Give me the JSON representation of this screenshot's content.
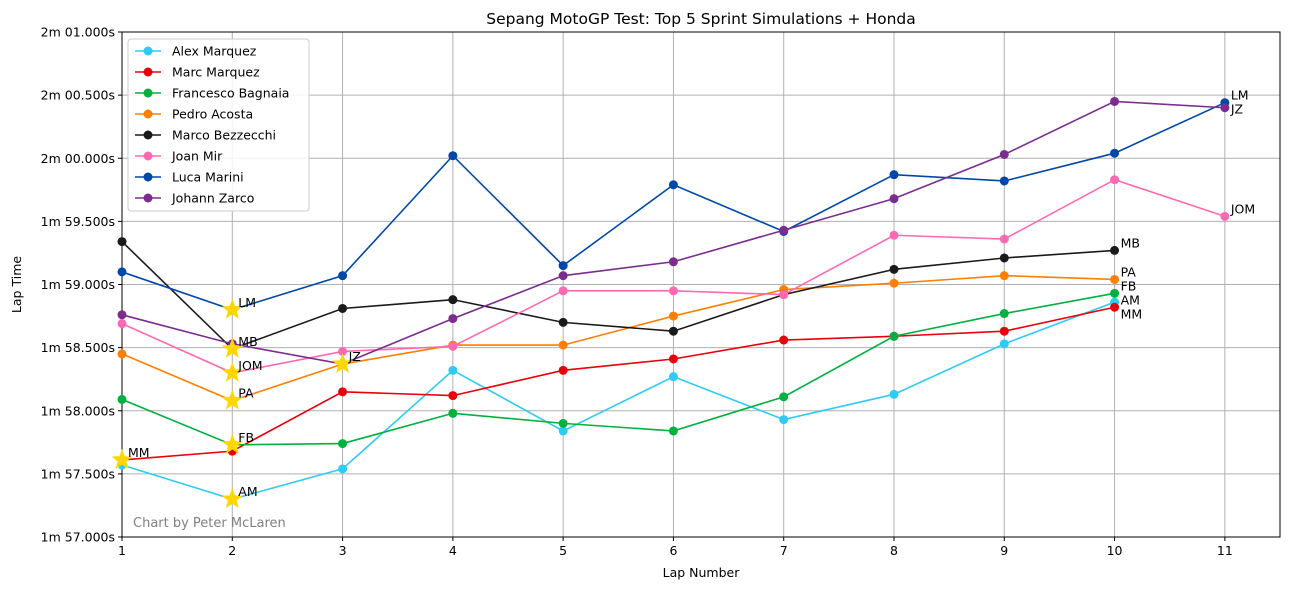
{
  "chart_data": {
    "type": "line",
    "title": "Sepang MotoGP Test: Top 5 Sprint Simulations + Honda",
    "xlabel": "Lap Number",
    "ylabel": "Lap Time",
    "xlim": [
      1,
      11.5
    ],
    "ylim": [
      57.0,
      61.0
    ],
    "x_ticks": [
      1,
      2,
      3,
      4,
      5,
      6,
      7,
      8,
      9,
      10,
      11
    ],
    "y_ticks": [
      {
        "value": 57.0,
        "label": "1m 57.000s"
      },
      {
        "value": 57.5,
        "label": "1m 57.500s"
      },
      {
        "value": 58.0,
        "label": "1m 58.000s"
      },
      {
        "value": 58.5,
        "label": "1m 58.500s"
      },
      {
        "value": 59.0,
        "label": "1m 59.000s"
      },
      {
        "value": 59.5,
        "label": "1m 59.500s"
      },
      {
        "value": 60.0,
        "label": "2m 00.000s"
      },
      {
        "value": 60.5,
        "label": "2m 00.500s"
      },
      {
        "value": 61.0,
        "label": "2m 01.000s"
      }
    ],
    "y_unit_note": "values are seconds past 1 minute",
    "grid": true,
    "legend_position": "top-left",
    "watermark": "Chart by Peter McLaren",
    "series": [
      {
        "name": "Alex Marquez",
        "abbr": "AM",
        "color": "#2ecbf5",
        "best_lap": 2,
        "x": [
          1,
          2,
          3,
          4,
          5,
          6,
          7,
          8,
          9,
          10
        ],
        "values": [
          57.57,
          57.3,
          57.54,
          58.32,
          57.84,
          58.27,
          57.93,
          58.13,
          58.53,
          58.86
        ]
      },
      {
        "name": "Marc Marquez",
        "abbr": "MM",
        "color": "#e8000b",
        "best_lap": 1,
        "x": [
          1,
          2,
          3,
          4,
          5,
          6,
          7,
          8,
          9,
          10
        ],
        "values": [
          57.61,
          57.68,
          58.15,
          58.12,
          58.32,
          58.41,
          58.56,
          58.59,
          58.63,
          58.82
        ]
      },
      {
        "name": "Francesco Bagnaia",
        "abbr": "FB",
        "color": "#00b140",
        "best_lap": 2,
        "x": [
          1,
          2,
          3,
          4,
          5,
          6,
          7,
          8,
          9,
          10
        ],
        "values": [
          58.09,
          57.73,
          57.74,
          57.98,
          57.9,
          57.84,
          58.11,
          58.59,
          58.77,
          58.93
        ]
      },
      {
        "name": "Pedro Acosta",
        "abbr": "PA",
        "color": "#ff7f00",
        "best_lap": 2,
        "x": [
          1,
          2,
          3,
          4,
          5,
          6,
          7,
          8,
          9,
          10
        ],
        "values": [
          58.45,
          58.08,
          58.37,
          58.52,
          58.52,
          58.75,
          58.96,
          59.01,
          59.07,
          59.04
        ]
      },
      {
        "name": "Marco Bezzecchi",
        "abbr": "MB",
        "color": "#1a1a1a",
        "best_lap": 2,
        "x": [
          1,
          2,
          3,
          4,
          5,
          6,
          7,
          8,
          9,
          10
        ],
        "values": [
          59.34,
          58.49,
          58.81,
          58.88,
          58.7,
          58.63,
          58.92,
          59.12,
          59.21,
          59.27
        ]
      },
      {
        "name": "Joan Mir",
        "abbr": "JOM",
        "color": "#ff69b4",
        "best_lap": 2,
        "x": [
          1,
          2,
          3,
          4,
          5,
          6,
          7,
          8,
          9,
          10,
          11
        ],
        "values": [
          58.69,
          58.3,
          58.47,
          58.51,
          58.95,
          58.95,
          58.92,
          59.39,
          59.36,
          59.83,
          59.54
        ]
      },
      {
        "name": "Luca Marini",
        "abbr": "LM",
        "color": "#0047ab",
        "best_lap": 2,
        "x": [
          1,
          2,
          3,
          4,
          5,
          6,
          7,
          8,
          9,
          10,
          11
        ],
        "values": [
          59.1,
          58.8,
          59.07,
          60.02,
          59.15,
          59.79,
          59.42,
          59.87,
          59.82,
          60.04,
          60.44
        ]
      },
      {
        "name": "Johann Zarco",
        "abbr": "JZ",
        "color": "#7b2d8e",
        "best_lap": 3,
        "x": [
          1,
          2,
          3,
          4,
          5,
          6,
          7,
          8,
          9,
          10,
          11
        ],
        "values": [
          58.76,
          58.53,
          58.37,
          58.73,
          59.07,
          59.18,
          59.43,
          59.68,
          60.03,
          60.45,
          60.4
        ]
      }
    ],
    "star_color": "#ffd700"
  }
}
